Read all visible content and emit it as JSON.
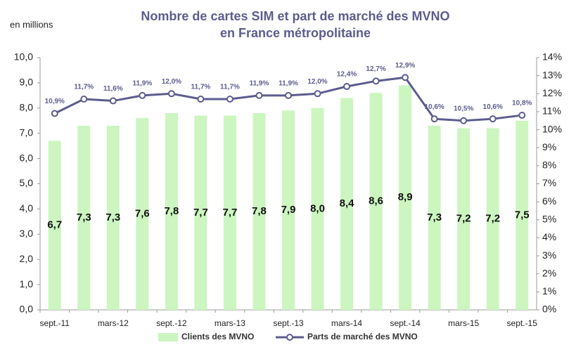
{
  "chart_data": {
    "type": "bar-line",
    "title": [
      "Nombre de cartes SIM et part de marché des MVNO",
      "en France métropolitaine"
    ],
    "y_label": "en millions",
    "categories": [
      "sept.-11",
      null,
      "mars-12",
      null,
      "sept.-12",
      null,
      "mars-13",
      null,
      "sept.-13",
      null,
      "mars-14",
      null,
      "sept.-14",
      null,
      "mars-15",
      null,
      "sept.-15"
    ],
    "series": [
      {
        "name": "Clients des MVNO",
        "color": "#ccf5c0",
        "values": [
          6.7,
          7.3,
          7.3,
          7.6,
          7.8,
          7.7,
          7.7,
          7.8,
          7.9,
          8.0,
          8.4,
          8.6,
          8.9,
          7.3,
          7.2,
          7.2,
          7.5
        ],
        "value_labels": [
          "6,7",
          "7,3",
          "7,3",
          "7,6",
          "7,8",
          "7,7",
          "7,7",
          "7,8",
          "7,9",
          "8,0",
          "8,4",
          "8,6",
          "8,9",
          "7,3",
          "7,2",
          "7,2",
          "7,5"
        ]
      },
      {
        "name": "Parts de marché des MVNO",
        "color": "#5c5c8e",
        "axis": "y2",
        "values": [
          10.9,
          11.7,
          11.6,
          11.9,
          12.0,
          11.7,
          11.7,
          11.9,
          11.9,
          12.0,
          12.4,
          12.7,
          12.9,
          10.6,
          10.5,
          10.6,
          10.8
        ],
        "value_labels": [
          "10,9%",
          "11,7%",
          "11,6%",
          "11,9%",
          "12,0%",
          "11,7%",
          "11,7%",
          "11,9%",
          "11,9%",
          "12,0%",
          "12,4%",
          "12,7%",
          "12,9%",
          "10,6%",
          "10,5%",
          "10,6%",
          "10,8%"
        ]
      }
    ],
    "ylim": [
      0,
      10
    ],
    "yticks": [
      {
        "value": 0,
        "label": "0,0"
      },
      {
        "value": 1,
        "label": "1,0"
      },
      {
        "value": 2,
        "label": "2,0"
      },
      {
        "value": 3,
        "label": "3,0"
      },
      {
        "value": 4,
        "label": "4,0"
      },
      {
        "value": 5,
        "label": "5,0"
      },
      {
        "value": 6,
        "label": "6,0"
      },
      {
        "value": 7,
        "label": "7,0"
      },
      {
        "value": 8,
        "label": "8,0"
      },
      {
        "value": 9,
        "label": "9,0"
      },
      {
        "value": 10,
        "label": "10,0"
      }
    ],
    "y2lim": [
      0,
      14
    ],
    "y2ticks": [
      {
        "value": 0,
        "label": "0%"
      },
      {
        "value": 1,
        "label": "1%"
      },
      {
        "value": 2,
        "label": "2%"
      },
      {
        "value": 3,
        "label": "3%"
      },
      {
        "value": 4,
        "label": "4%"
      },
      {
        "value": 5,
        "label": "5%"
      },
      {
        "value": 6,
        "label": "6%"
      },
      {
        "value": 7,
        "label": "7%"
      },
      {
        "value": 8,
        "label": "8%"
      },
      {
        "value": 9,
        "label": "9%"
      },
      {
        "value": 10,
        "label": "10%"
      },
      {
        "value": 11,
        "label": "11%"
      },
      {
        "value": 12,
        "label": "12%"
      },
      {
        "value": 13,
        "label": "13%"
      },
      {
        "value": 14,
        "label": "14%"
      }
    ],
    "legend": "bottom"
  }
}
